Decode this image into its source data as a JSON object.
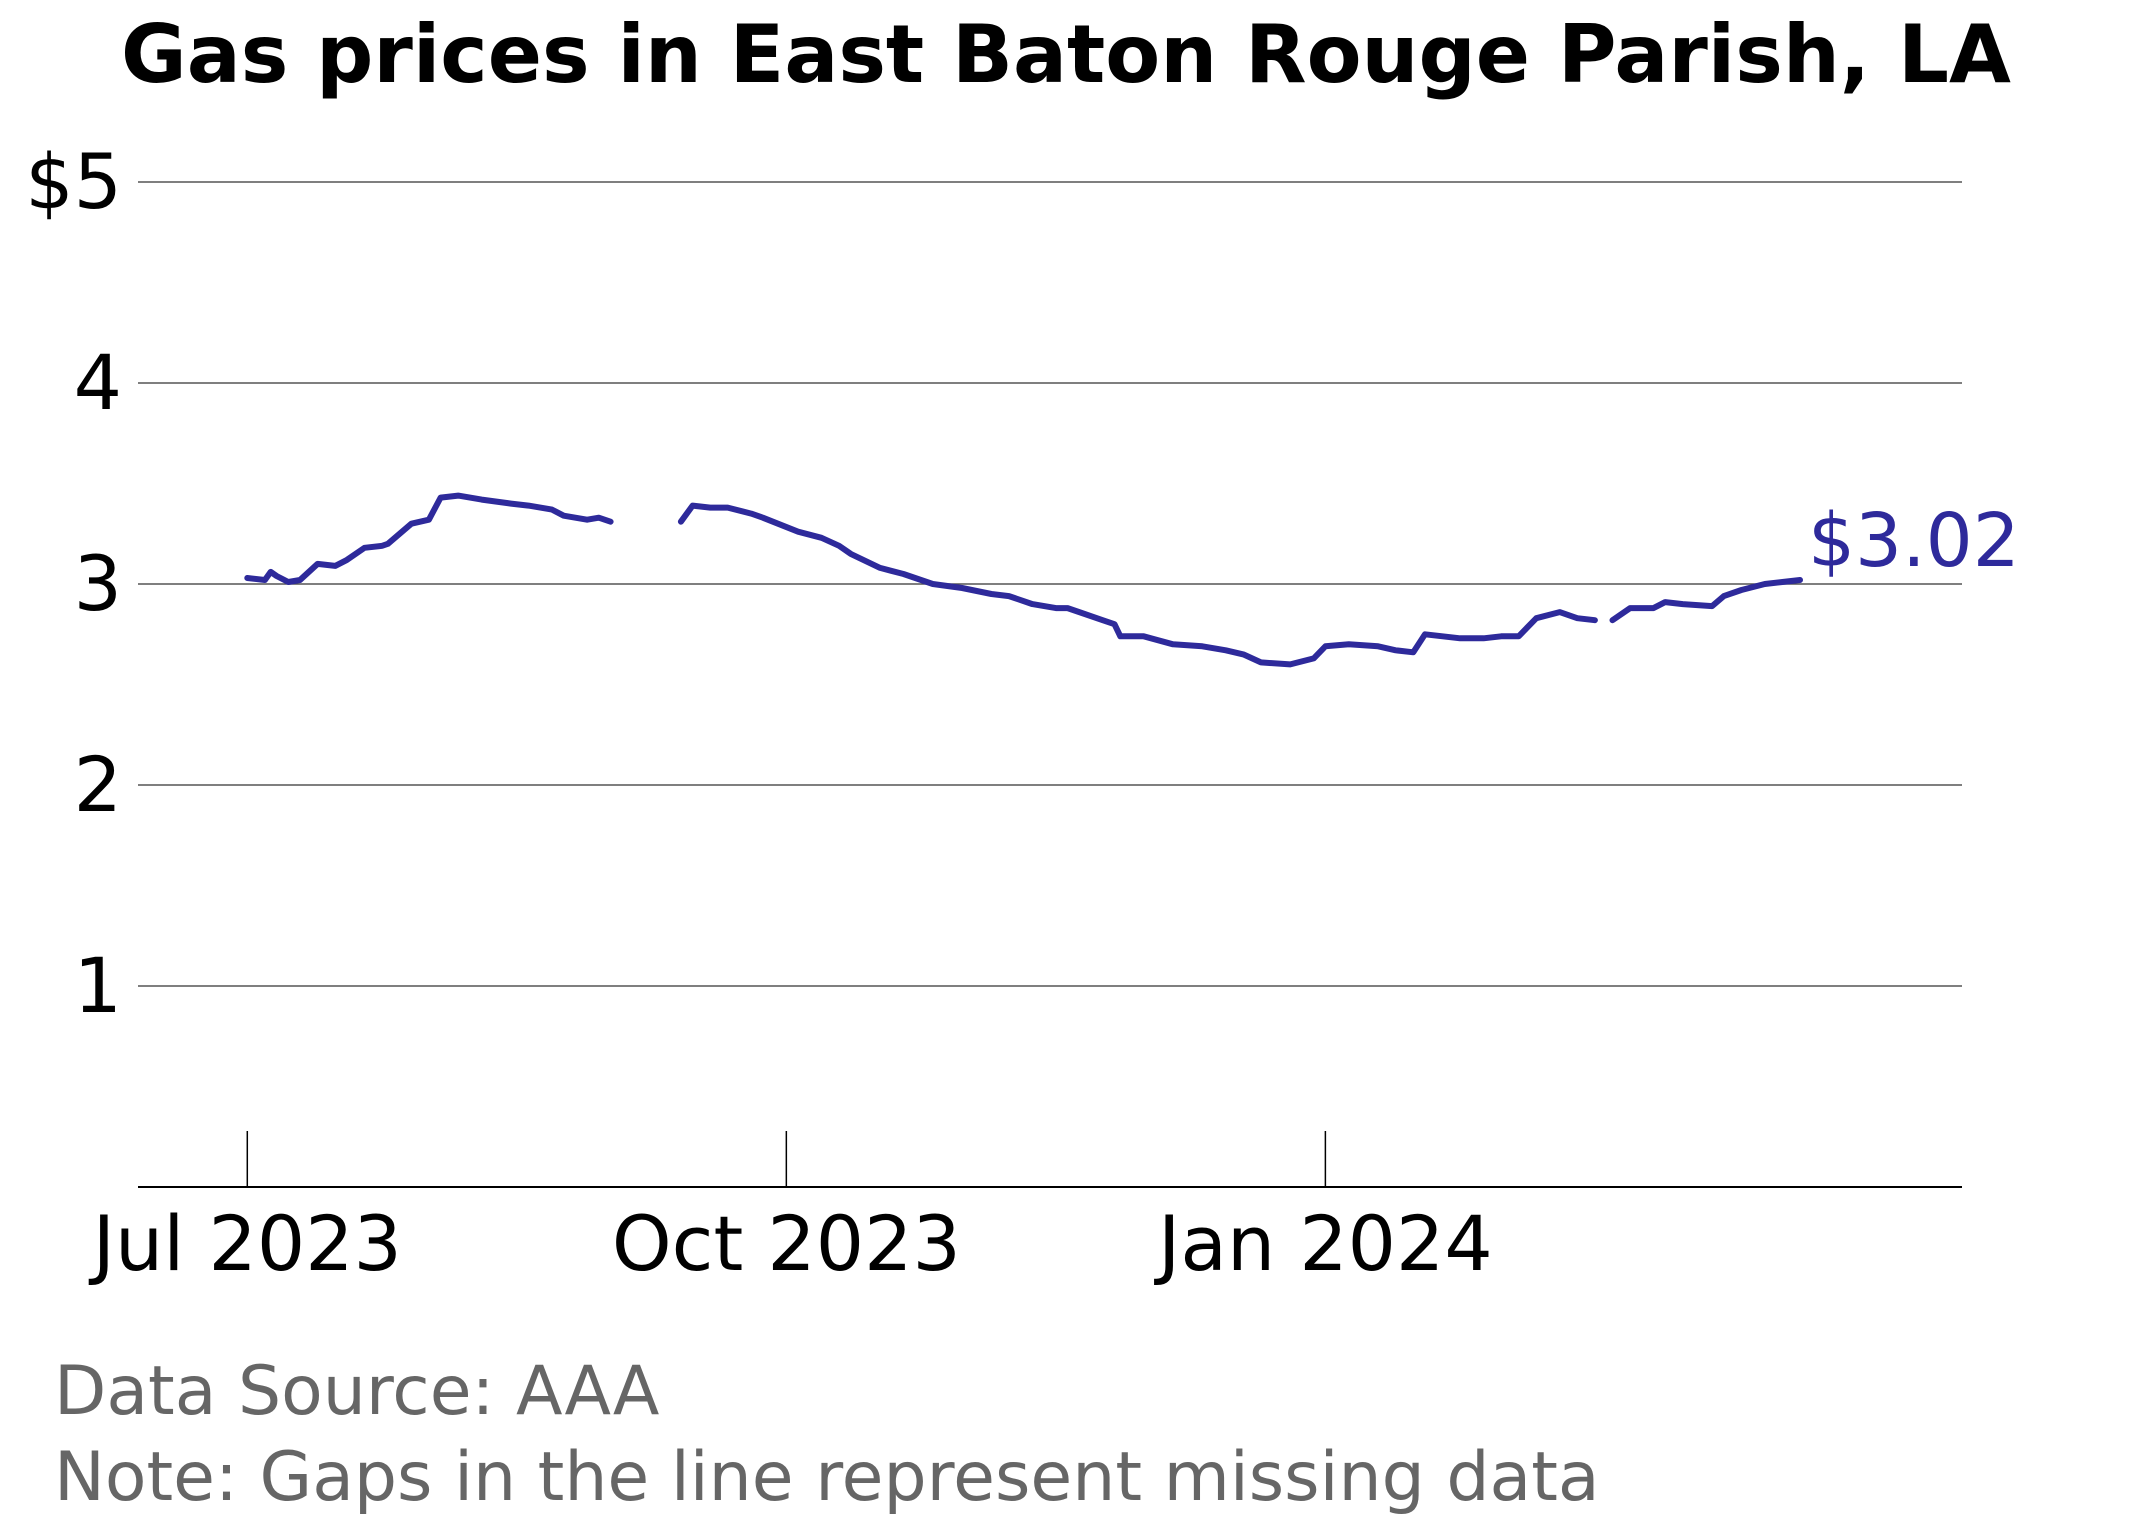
{
  "chart_data": {
    "type": "line",
    "title": "Gas prices in East Baton Rouge Parish, LA",
    "xlabel": "",
    "ylabel": "",
    "ylim": [
      0,
      5
    ],
    "xlim": [
      "2023-06-26",
      "2024-04-05"
    ],
    "grid": "horizontal",
    "y_ticks": [
      {
        "value": 1,
        "label": "1"
      },
      {
        "value": 2,
        "label": "2"
      },
      {
        "value": 3,
        "label": "3"
      },
      {
        "value": 4,
        "label": "4"
      },
      {
        "value": 5,
        "label": "$5"
      }
    ],
    "x_ticks": [
      {
        "date": "2023-07-01",
        "label": "Jul 2023"
      },
      {
        "date": "2023-10-01",
        "label": "Oct 2023"
      },
      {
        "date": "2024-01-01",
        "label": "Jan 2024"
      }
    ],
    "end_label": "$3.02",
    "line_color": "#2e2a9b",
    "series": [
      {
        "segments": [
          [
            [
              "2023-07-01",
              3.03
            ],
            [
              "2023-07-04",
              3.02
            ],
            [
              "2023-07-05",
              3.06
            ],
            [
              "2023-07-06",
              3.04
            ],
            [
              "2023-07-08",
              3.01
            ],
            [
              "2023-07-10",
              3.02
            ],
            [
              "2023-07-13",
              3.1
            ],
            [
              "2023-07-16",
              3.09
            ],
            [
              "2023-07-18",
              3.12
            ],
            [
              "2023-07-21",
              3.18
            ],
            [
              "2023-07-24",
              3.19
            ],
            [
              "2023-07-25",
              3.2
            ],
            [
              "2023-07-29",
              3.3
            ],
            [
              "2023-08-01",
              3.32
            ],
            [
              "2023-08-03",
              3.43
            ],
            [
              "2023-08-06",
              3.44
            ],
            [
              "2023-08-10",
              3.42
            ],
            [
              "2023-08-15",
              3.4
            ],
            [
              "2023-08-18",
              3.39
            ],
            [
              "2023-08-22",
              3.37
            ],
            [
              "2023-08-24",
              3.34
            ],
            [
              "2023-08-28",
              3.32
            ],
            [
              "2023-08-30",
              3.33
            ],
            [
              "2023-09-01",
              3.31
            ]
          ],
          [
            [
              "2023-09-13",
              3.31
            ],
            [
              "2023-09-15",
              3.39
            ],
            [
              "2023-09-18",
              3.38
            ],
            [
              "2023-09-21",
              3.38
            ],
            [
              "2023-09-25",
              3.35
            ],
            [
              "2023-09-27",
              3.33
            ],
            [
              "2023-10-03",
              3.26
            ],
            [
              "2023-10-07",
              3.23
            ],
            [
              "2023-10-10",
              3.19
            ],
            [
              "2023-10-12",
              3.15
            ],
            [
              "2023-10-17",
              3.08
            ],
            [
              "2023-10-21",
              3.05
            ],
            [
              "2023-10-26",
              3.0
            ],
            [
              "2023-10-31",
              2.98
            ],
            [
              "2023-11-05",
              2.95
            ],
            [
              "2023-11-08",
              2.94
            ],
            [
              "2023-11-12",
              2.9
            ],
            [
              "2023-11-16",
              2.88
            ],
            [
              "2023-11-18",
              2.88
            ],
            [
              "2023-11-20",
              2.86
            ],
            [
              "2023-11-24",
              2.82
            ],
            [
              "2023-11-26",
              2.8
            ],
            [
              "2023-11-27",
              2.74
            ],
            [
              "2023-12-01",
              2.74
            ],
            [
              "2023-12-06",
              2.7
            ],
            [
              "2023-12-11",
              2.69
            ],
            [
              "2023-12-15",
              2.67
            ],
            [
              "2023-12-18",
              2.65
            ],
            [
              "2023-12-21",
              2.61
            ],
            [
              "2023-12-26",
              2.6
            ],
            [
              "2023-12-30",
              2.63
            ],
            [
              "2024-01-01",
              2.69
            ],
            [
              "2024-01-05",
              2.7
            ],
            [
              "2024-01-10",
              2.69
            ],
            [
              "2024-01-13",
              2.67
            ],
            [
              "2024-01-16",
              2.66
            ],
            [
              "2024-01-18",
              2.75
            ],
            [
              "2024-01-21",
              2.74
            ],
            [
              "2024-01-24",
              2.73
            ],
            [
              "2024-01-28",
              2.73
            ],
            [
              "2024-01-31",
              2.74
            ],
            [
              "2024-02-03",
              2.74
            ],
            [
              "2024-02-06",
              2.83
            ],
            [
              "2024-02-10",
              2.86
            ],
            [
              "2024-02-13",
              2.83
            ],
            [
              "2024-02-16",
              2.82
            ]
          ],
          [
            [
              "2024-02-19",
              2.82
            ],
            [
              "2024-02-22",
              2.88
            ],
            [
              "2024-02-26",
              2.88
            ],
            [
              "2024-02-28",
              2.91
            ],
            [
              "2024-03-02",
              2.9
            ],
            [
              "2024-03-07",
              2.89
            ],
            [
              "2024-03-09",
              2.94
            ],
            [
              "2024-03-12",
              2.97
            ],
            [
              "2024-03-16",
              3.0
            ],
            [
              "2024-03-19",
              3.01
            ],
            [
              "2024-03-22",
              3.02
            ]
          ]
        ]
      }
    ]
  },
  "footer": {
    "source": "Data Source: AAA",
    "note": "Note: Gaps in the line represent missing data"
  }
}
